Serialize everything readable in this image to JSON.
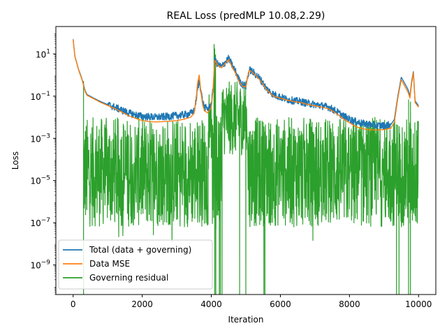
{
  "chart_data": {
    "type": "line",
    "title": "REAL Loss (predMLP 10.08,2.29)",
    "xlabel": "Iteration",
    "ylabel": "Loss",
    "yscale": "log",
    "xlim": [
      -500,
      10500
    ],
    "ylim_log10": [
      -10.4,
      2.3
    ],
    "x_ticks": [
      {
        "value": 0,
        "label": "0"
      },
      {
        "value": 2000,
        "label": "2000"
      },
      {
        "value": 4000,
        "label": "4000"
      },
      {
        "value": 6000,
        "label": "6000"
      },
      {
        "value": 8000,
        "label": "8000"
      },
      {
        "value": 10000,
        "label": "10000"
      }
    ],
    "y_ticks": [
      {
        "exp": -9,
        "base": "10",
        "power": "−9"
      },
      {
        "exp": -7,
        "base": "10",
        "power": "−7"
      },
      {
        "exp": -5,
        "base": "10",
        "power": "−5"
      },
      {
        "exp": -3,
        "base": "10",
        "power": "−3"
      },
      {
        "exp": -1,
        "base": "10",
        "power": "−1"
      },
      {
        "exp": 1,
        "base": "10",
        "power": "1"
      }
    ],
    "grid": false,
    "legend_position": "lower-left",
    "series": [
      {
        "name": "Total (data + governing)",
        "color": "#1f77b4",
        "x": [
          0,
          50,
          100,
          150,
          200,
          250,
          300,
          350,
          400,
          600,
          800,
          1000,
          1200,
          1400,
          1600,
          1800,
          2000,
          2200,
          2400,
          2600,
          2800,
          3000,
          3200,
          3400,
          3500,
          3550,
          3600,
          3650,
          3700,
          3750,
          3800,
          3900,
          4000,
          4050,
          4100,
          4200,
          4300,
          4400,
          4500,
          4600,
          4700,
          4800,
          4900,
          5000,
          5050,
          5100,
          5200,
          5300,
          5400,
          5500,
          5600,
          5800,
          6000,
          6200,
          6400,
          6600,
          6800,
          7000,
          7200,
          7400,
          7600,
          7800,
          8000,
          8200,
          8400,
          8600,
          8800,
          9000,
          9200,
          9300,
          9400,
          9500,
          9600,
          9700,
          9750,
          9800,
          9850,
          9900,
          10000
        ],
        "y": [
          50,
          8,
          4,
          2,
          1.2,
          0.7,
          0.35,
          0.18,
          0.12,
          0.08,
          0.055,
          0.04,
          0.03,
          0.022,
          0.016,
          0.013,
          0.011,
          0.0105,
          0.01,
          0.0105,
          0.011,
          0.012,
          0.013,
          0.015,
          0.02,
          0.05,
          0.2,
          0.5,
          0.2,
          0.05,
          0.03,
          0.025,
          0.04,
          0.2,
          5,
          3,
          2.5,
          4,
          6,
          3,
          1.5,
          0.6,
          0.35,
          0.3,
          0.8,
          1.8,
          1.4,
          1.0,
          0.7,
          0.4,
          0.22,
          0.12,
          0.09,
          0.07,
          0.06,
          0.055,
          0.045,
          0.04,
          0.035,
          0.03,
          0.02,
          0.012,
          0.008,
          0.006,
          0.005,
          0.0045,
          0.004,
          0.004,
          0.0045,
          0.008,
          0.1,
          0.8,
          0.4,
          0.2,
          0.1,
          0.5,
          1.5,
          0.06,
          0.035
        ]
      },
      {
        "name": "Data MSE",
        "color": "#ff7f0e",
        "x": [
          0,
          50,
          100,
          150,
          200,
          250,
          300,
          350,
          400,
          600,
          800,
          1000,
          1200,
          1400,
          1600,
          1800,
          2000,
          2200,
          2400,
          2600,
          2800,
          3000,
          3200,
          3400,
          3500,
          3550,
          3600,
          3650,
          3700,
          3750,
          3800,
          3900,
          4000,
          4050,
          4100,
          4200,
          4300,
          4400,
          4500,
          4600,
          4700,
          4800,
          4900,
          5000,
          5050,
          5100,
          5200,
          5300,
          5400,
          5500,
          5600,
          5800,
          6000,
          6200,
          6400,
          6600,
          6800,
          7000,
          7200,
          7400,
          7600,
          7800,
          8000,
          8200,
          8400,
          8600,
          8800,
          9000,
          9200,
          9300,
          9400,
          9500,
          9600,
          9700,
          9750,
          9800,
          9850,
          9900,
          10000
        ],
        "y": [
          48,
          7.5,
          3.8,
          1.9,
          1.1,
          0.65,
          0.32,
          0.16,
          0.11,
          0.075,
          0.05,
          0.036,
          0.026,
          0.018,
          0.012,
          0.009,
          0.007,
          0.0062,
          0.006,
          0.0062,
          0.0065,
          0.007,
          0.008,
          0.01,
          0.015,
          0.05,
          0.4,
          1.0,
          0.15,
          0.04,
          0.02,
          0.016,
          0.03,
          0.2,
          5,
          2.8,
          2.2,
          3.5,
          5.5,
          2.5,
          1.2,
          0.5,
          0.3,
          0.27,
          0.8,
          1.7,
          1.3,
          0.9,
          0.6,
          0.35,
          0.2,
          0.1,
          0.08,
          0.065,
          0.055,
          0.05,
          0.04,
          0.035,
          0.03,
          0.025,
          0.016,
          0.009,
          0.0055,
          0.0035,
          0.0028,
          0.0025,
          0.0025,
          0.0026,
          0.003,
          0.006,
          0.08,
          0.6,
          0.3,
          0.15,
          0.08,
          0.4,
          1.3,
          0.05,
          0.03
        ]
      },
      {
        "name": "Governing residual",
        "color": "#2ca02c",
        "x": [
          0
        ],
        "y": [
          0.0005
        ]
      }
    ]
  }
}
